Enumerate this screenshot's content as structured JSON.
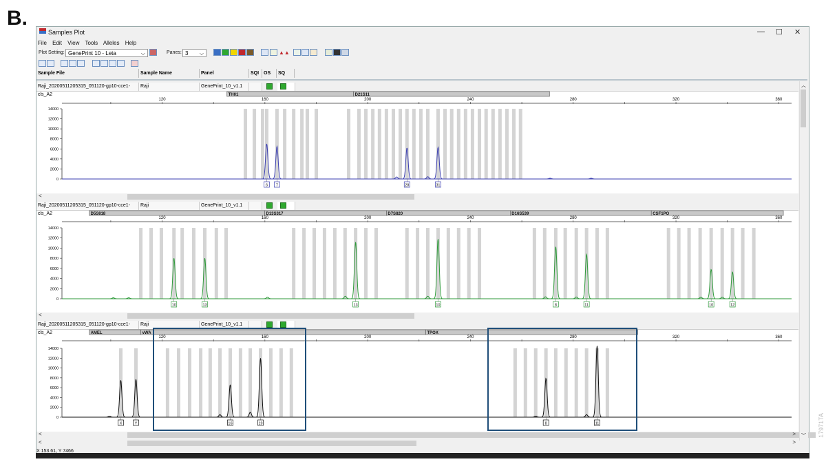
{
  "figure_label": "B.",
  "window": {
    "title": "Samples Plot",
    "controls": [
      "—",
      "☐",
      "✕"
    ]
  },
  "menu": [
    "File",
    "Edit",
    "View",
    "Tools",
    "Alleles",
    "Help"
  ],
  "toolbar": {
    "plot_setting_label": "Plot Setting:",
    "plot_setting_value": "GenePrint 10 - Leta",
    "panes_label": "Panes:",
    "panes_value": "3",
    "color_buttons": [
      "#3a6fc4",
      "#2fa82f",
      "#f2d600",
      "#c0282d",
      "#7a5a2a"
    ]
  },
  "table_header": [
    "Sample File",
    "Sample Name",
    "Panel",
    "SQI",
    "OS",
    "SQ"
  ],
  "sample": {
    "file": "Raji_20200511205315_051120-gp10-cce1-cls_A2",
    "name": "Raji",
    "panel": "GenePrint_10_v1.1"
  },
  "status_bar": "X 153.61, Y 7466",
  "side_id": "17971TA",
  "chart_data": [
    {
      "type": "line",
      "dye_color": "#3b3fb0",
      "xlim": [
        81,
        365
      ],
      "ylim": [
        0,
        14000
      ],
      "xticks": [
        120,
        160,
        200,
        240,
        280,
        320,
        360
      ],
      "yticks": [
        0,
        2000,
        4000,
        6000,
        8000,
        10000,
        12000,
        14000
      ],
      "loci": [
        {
          "name": "TH01",
          "range": [
            145.2,
            194.5
          ]
        },
        {
          "name": "D21S11",
          "range": [
            194.5,
            270.8
          ]
        }
      ],
      "bins": [
        152.4,
        155.9,
        159.1,
        160.7,
        164.7,
        167.7,
        171.2,
        174.4,
        176.5,
        180.0,
        192.6,
        196.6,
        199.3,
        202.0,
        204.6,
        207.3,
        210.0,
        212.7,
        215.3,
        218.0,
        220.7,
        223.4,
        227.4,
        230.1,
        232.7,
        235.4,
        238.1,
        240.8,
        243.5,
        246.1,
        248.8,
        251.5,
        254.2,
        256.9,
        259.5
      ],
      "peaks": [
        {
          "bp": 160.7,
          "rfu": 7000,
          "allele": "6"
        },
        {
          "bp": 164.7,
          "rfu": 6500,
          "allele": "7"
        },
        {
          "bp": 211.3,
          "rfu": 400
        },
        {
          "bp": 215.3,
          "rfu": 6200,
          "allele": "28"
        },
        {
          "bp": 223.4,
          "rfu": 450
        },
        {
          "bp": 227.4,
          "rfu": 6300,
          "allele": "31"
        },
        {
          "bp": 271.0,
          "rfu": 150
        },
        {
          "bp": 287.0,
          "rfu": 150
        }
      ]
    },
    {
      "type": "line",
      "dye_color": "#2e9a3a",
      "xlim": [
        81,
        365
      ],
      "ylim": [
        0,
        14000
      ],
      "xticks": [
        120,
        160,
        200,
        240,
        280,
        320,
        360
      ],
      "yticks": [
        0,
        2000,
        4000,
        6000,
        8000,
        10000,
        12000,
        14000
      ],
      "loci": [
        {
          "name": "D5S818",
          "range": [
            91.6,
            159.9
          ]
        },
        {
          "name": "D13S317",
          "range": [
            159.9,
            207.3
          ]
        },
        {
          "name": "D7S820",
          "range": [
            207.3,
            255.5
          ]
        },
        {
          "name": "D16S539",
          "range": [
            255.5,
            310.4
          ]
        },
        {
          "name": "CSF1PO",
          "range": [
            310.4,
            361.8
          ]
        }
      ],
      "bins": [
        111.7,
        115.7,
        119.7,
        124.6,
        127.8,
        132.3,
        136.6,
        141.1,
        144.9,
        171.2,
        175.2,
        179.2,
        183.2,
        187.2,
        191.2,
        195.3,
        199.3,
        203.3,
        215.3,
        219.4,
        223.4,
        227.4,
        231.4,
        235.4,
        239.4,
        243.5,
        264.9,
        268.9,
        273.2,
        276.9,
        281.2,
        285.2,
        289.3,
        293.3,
        317.1,
        321.1,
        325.1,
        329.4,
        333.7,
        338.0,
        342.0,
        346.0,
        350.3
      ],
      "peaks": [
        {
          "bp": 101.0,
          "rfu": 200
        },
        {
          "bp": 107.0,
          "rfu": 200
        },
        {
          "bp": 124.6,
          "rfu": 8000,
          "allele": "10"
        },
        {
          "bp": 136.6,
          "rfu": 8000,
          "allele": "13"
        },
        {
          "bp": 161.0,
          "rfu": 300
        },
        {
          "bp": 191.3,
          "rfu": 500
        },
        {
          "bp": 195.3,
          "rfu": 11200,
          "allele": "13"
        },
        {
          "bp": 223.4,
          "rfu": 500
        },
        {
          "bp": 227.4,
          "rfu": 11800,
          "allele": "10"
        },
        {
          "bp": 269.2,
          "rfu": 400
        },
        {
          "bp": 273.2,
          "rfu": 10300,
          "allele": "8"
        },
        {
          "bp": 281.2,
          "rfu": 350
        },
        {
          "bp": 285.2,
          "rfu": 8800,
          "allele": "11"
        },
        {
          "bp": 329.7,
          "rfu": 300
        },
        {
          "bp": 333.7,
          "rfu": 5800,
          "allele": "10"
        },
        {
          "bp": 338.0,
          "rfu": 300
        },
        {
          "bp": 342.0,
          "rfu": 5300,
          "allele": "12"
        }
      ]
    },
    {
      "type": "line",
      "dye_color": "#111111",
      "xlim": [
        81,
        365
      ],
      "ylim": [
        0,
        14000
      ],
      "xticks": [
        120,
        160,
        200,
        240,
        280,
        320,
        360
      ],
      "yticks": [
        0,
        2000,
        4000,
        6000,
        8000,
        10000,
        12000,
        14000
      ],
      "loci": [
        {
          "name": "AMEL",
          "range": [
            91.6,
            111.7
          ]
        },
        {
          "name": "vWA",
          "range": [
            111.7,
            222.6
          ]
        },
        {
          "name": "TPOX",
          "range": [
            222.6,
            305.1
          ]
        }
      ],
      "bins": [
        103.9,
        109.8,
        122.1,
        126.4,
        130.7,
        135.0,
        138.7,
        142.5,
        146.5,
        150.5,
        154.3,
        158.3,
        162.3,
        166.3,
        170.3,
        257.4,
        261.4,
        265.4,
        269.4,
        273.2,
        277.2,
        281.2,
        285.2,
        289.3,
        293.3
      ],
      "peaks": [
        {
          "bp": 99.5,
          "rfu": 200
        },
        {
          "bp": 103.9,
          "rfu": 7500,
          "allele": "X"
        },
        {
          "bp": 109.8,
          "rfu": 7700,
          "allele": "Y"
        },
        {
          "bp": 142.5,
          "rfu": 500
        },
        {
          "bp": 146.5,
          "rfu": 6600,
          "allele": "16"
        },
        {
          "bp": 154.3,
          "rfu": 1000
        },
        {
          "bp": 158.3,
          "rfu": 12000,
          "allele": "19"
        },
        {
          "bp": 265.4,
          "rfu": 200
        },
        {
          "bp": 269.4,
          "rfu": 7900,
          "allele": "8"
        },
        {
          "bp": 285.2,
          "rfu": 500
        },
        {
          "bp": 289.3,
          "rfu": 14500,
          "allele": "11"
        }
      ]
    }
  ]
}
